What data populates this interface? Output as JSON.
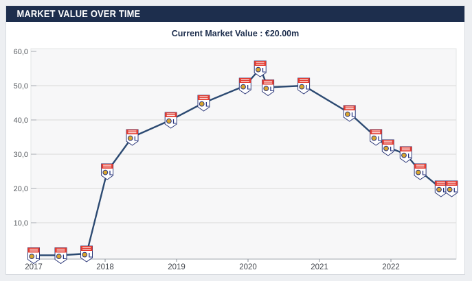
{
  "header": {
    "title": "MARKET VALUE OVER TIME"
  },
  "subtitle": {
    "text": "Current Market Value : €20.00m"
  },
  "colors": {
    "header_bg": "#1d2e4d",
    "subtitle_text": "#1d2e4d",
    "line": "#2c4a72",
    "plot_bg": "#f7f7f8",
    "gridline": "#d9d9d9",
    "axis_line": "#bfc3c8",
    "tick_label": "#55595e",
    "year_label": "#3f434a",
    "crest_red": "#e23c32",
    "crest_blue": "#26337f",
    "crest_gold": "#d9a62e",
    "crest_border": "#2e3a7a"
  },
  "chart_data": {
    "type": "line",
    "title": "Current Market Value : €20.00m",
    "xlabel": "",
    "ylabel": "",
    "ylim": [
      0,
      62
    ],
    "grid": true,
    "legend": "none",
    "marker_icon": "ol-club-crest",
    "marker_note": "Every data point is marked with the Olympique Lyonnais club crest; the final value shows two adjacent crest markers",
    "y_ticks": [
      {
        "value": 10,
        "label": "10,0"
      },
      {
        "value": 20,
        "label": "20,0"
      },
      {
        "value": 30,
        "label": "30,0"
      },
      {
        "value": 40,
        "label": "40,0"
      },
      {
        "value": 50,
        "label": "50,0"
      },
      {
        "value": 60,
        "label": "60,0"
      }
    ],
    "x_ticks": [
      {
        "value": 2017,
        "label": "2017"
      },
      {
        "value": 2018,
        "label": "2018"
      },
      {
        "value": 2019,
        "label": "2019"
      },
      {
        "value": 2020,
        "label": "2020"
      },
      {
        "value": 2021,
        "label": "2021"
      },
      {
        "value": 2022,
        "label": "2022"
      }
    ],
    "points": [
      {
        "t": 2017.0,
        "v": 0.5
      },
      {
        "t": 2017.38,
        "v": 0.5
      },
      {
        "t": 2017.74,
        "v": 1
      },
      {
        "t": 2018.03,
        "v": 25
      },
      {
        "t": 2018.38,
        "v": 35
      },
      {
        "t": 2018.92,
        "v": 40
      },
      {
        "t": 2019.38,
        "v": 45
      },
      {
        "t": 2019.96,
        "v": 50
      },
      {
        "t": 2020.17,
        "v": 55
      },
      {
        "t": 2020.28,
        "v": 49.5
      },
      {
        "t": 2020.78,
        "v": 50
      },
      {
        "t": 2021.42,
        "v": 42
      },
      {
        "t": 2021.79,
        "v": 35
      },
      {
        "t": 2021.96,
        "v": 32
      },
      {
        "t": 2022.21,
        "v": 30
      },
      {
        "t": 2022.41,
        "v": 25
      },
      {
        "t": 2022.7,
        "v": 20
      },
      {
        "t": 2022.85,
        "v": 20
      }
    ]
  }
}
